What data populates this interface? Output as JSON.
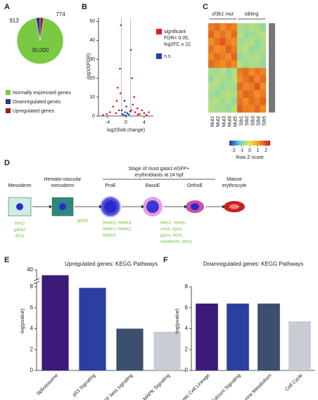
{
  "panels": [
    "A",
    "B",
    "C",
    "D",
    "E",
    "F"
  ],
  "chart_data": [
    {
      "type": "pie",
      "series": [
        {
          "name": "Normally expressed genes",
          "color": "#7ac943",
          "values": [
            30000
          ],
          "value_labels": [
            "30,000"
          ]
        },
        {
          "name": "Downregulated genes",
          "color": "#2e3192",
          "values": [
            913
          ]
        },
        {
          "name": "Upregulated genes",
          "color": "#9e1b20",
          "values": [
            774
          ]
        }
      ]
    },
    {
      "type": "scatter",
      "x_label": "log2(fold change)",
      "y_label": "-log10(FDR)",
      "xlim": [
        -6,
        6
      ],
      "ylim": [
        0,
        52
      ],
      "xticks": [
        -4,
        0,
        4
      ],
      "yticks": [
        0,
        10,
        20,
        30,
        40,
        50
      ],
      "series": [
        {
          "name": "significant",
          "legend_lines": [
            "FDR< 0.05,",
            "log2FC ≥ |1|"
          ],
          "color": "#e41a1c",
          "x": [
            -3.5,
            -2.8,
            -2,
            -1.5,
            -4.2,
            -1.2,
            -2.2,
            -5,
            -1.8,
            -1.3,
            -1.1,
            1.2,
            1.5,
            2,
            2.5,
            3,
            3.5,
            4,
            1.8,
            1.3,
            2.6,
            4.5,
            1.1,
            5
          ],
          "values": [
            2,
            5,
            8,
            3,
            1,
            12,
            1.5,
            0.5,
            15,
            25,
            48,
            3,
            6,
            2,
            4,
            1,
            3,
            1.5,
            10,
            20,
            0.8,
            0.5,
            35,
            2
          ]
        },
        {
          "name": "n.s.",
          "color": "#2340b0",
          "x": [
            -0.8,
            -0.5,
            -0.2,
            0,
            0.3,
            0.6,
            0.9,
            -0.9,
            0.1,
            -0.3
          ],
          "values": [
            1,
            0.5,
            2,
            0.3,
            1.5,
            0.8,
            2.5,
            3,
            5,
            8
          ]
        }
      ]
    },
    {
      "type": "heatmap",
      "colorbar_label": "Row Z-score",
      "groups": [
        "sf3b1 mut",
        "sibling"
      ],
      "columns": [
        "Mut1",
        "Mut2",
        "Mut3",
        "Mut4",
        "Mut5",
        "Sib1",
        "Sib2",
        "Sib3",
        "Sib4",
        "Sib5"
      ],
      "zlim": [
        -2.5,
        2.5
      ],
      "zticks": [
        -2,
        -1,
        0,
        1,
        2
      ],
      "colors": [
        "#2b2bb5",
        "#5bd3d3",
        "#f4e542",
        "#f08a24",
        "#c81e1e"
      ],
      "matrix": [
        [
          1.4,
          1.6,
          1.2,
          1.5,
          1.3,
          -0.6,
          -0.7,
          -0.5,
          -0.6,
          -0.8
        ],
        [
          1.7,
          1.3,
          1.5,
          1.2,
          1.6,
          -0.5,
          -0.8,
          -0.7,
          -0.6,
          -0.5
        ],
        [
          1.2,
          1.5,
          1.8,
          1.4,
          1.2,
          -0.7,
          -0.6,
          -0.5,
          -0.8,
          -0.6
        ],
        [
          1.5,
          1.2,
          1.3,
          1.7,
          1.4,
          -0.6,
          -0.5,
          -0.8,
          -0.7,
          -0.6
        ],
        [
          1.3,
          1.6,
          1.4,
          1.2,
          1.7,
          -0.8,
          -0.6,
          -0.6,
          -0.5,
          -0.7
        ],
        [
          1.6,
          1.4,
          1.2,
          1.5,
          1.3,
          -0.5,
          -0.7,
          -0.6,
          -0.6,
          -0.8
        ],
        [
          -0.6,
          -0.7,
          -0.5,
          -0.8,
          -0.6,
          1.4,
          1.6,
          1.2,
          1.5,
          1.3
        ],
        [
          -0.8,
          -0.5,
          -0.6,
          -0.7,
          -0.5,
          1.2,
          1.5,
          1.7,
          1.3,
          1.6
        ],
        [
          -0.5,
          -0.6,
          -0.8,
          -0.6,
          -0.7,
          1.6,
          1.3,
          1.4,
          1.8,
          1.2
        ],
        [
          -0.7,
          -0.8,
          -0.6,
          -0.5,
          -0.6,
          1.3,
          1.7,
          1.5,
          1.2,
          1.4
        ],
        [
          -0.6,
          -0.5,
          -0.7,
          -0.6,
          -0.8,
          1.5,
          1.2,
          1.6,
          1.4,
          1.7
        ],
        [
          -0.5,
          -0.7,
          -0.6,
          -0.8,
          -0.5,
          1.7,
          1.4,
          1.3,
          1.6,
          1.2
        ]
      ]
    },
    {
      "type": "bar",
      "title": "Upregulated genes: KEGG Pathways",
      "y_label": "-log(pvalue)",
      "categories": [
        "Spliceosome",
        "p53 Signaling",
        "TGF beta signaling",
        "MAPK Signaling"
      ],
      "colors": [
        "#3b1a7a",
        "#2a3fa0",
        "#3d4f6e",
        "#c8ccd3"
      ],
      "values": [
        30,
        7.9,
        4,
        3.7
      ],
      "ylim": [
        0,
        40
      ],
      "yticks": [
        0,
        2,
        4,
        6,
        8,
        40
      ],
      "axis_break": true
    },
    {
      "type": "bar",
      "title": "Downregulated genes: KEGG Pathways",
      "y_label": "-log(pvalue)",
      "categories": [
        "Hematopoietic Cell Lineage",
        "Calcium Signaling",
        "Purine Metabolism",
        "Cell Cycle"
      ],
      "colors": [
        "#3b1a7a",
        "#2a3fa0",
        "#3d4f6e",
        "#c8ccd3"
      ],
      "values": [
        6.4,
        6.4,
        6.4,
        4.7
      ],
      "ylim": [
        0,
        8
      ],
      "yticks": [
        0,
        2,
        4,
        6,
        8
      ]
    }
  ],
  "diagram": {
    "stage_label": [
      "Stage of most gata1:eGFP+",
      "erythroblasts at 24 hpf"
    ],
    "nodes": [
      [
        "Mesoderm"
      ],
      [
        "Hemato-vascular",
        "mesoderm"
      ],
      [
        "ProE"
      ],
      [
        "BasoE"
      ],
      [
        "OrthoE"
      ],
      [
        "Mature",
        "erythrocyte"
      ]
    ],
    "gene_groups": [
      [
        "lmo2",
        "gata2",
        "fli1a"
      ],
      [
        "gata1"
      ],
      [
        "hbae1, hbae3,",
        "hbbe1, hbbe2,",
        "hbbe3"
      ],
      [
        "alas1, hmbs,",
        "urod, cpox,",
        "ppox, fech,",
        "mitoferrin, dmt1"
      ]
    ]
  }
}
